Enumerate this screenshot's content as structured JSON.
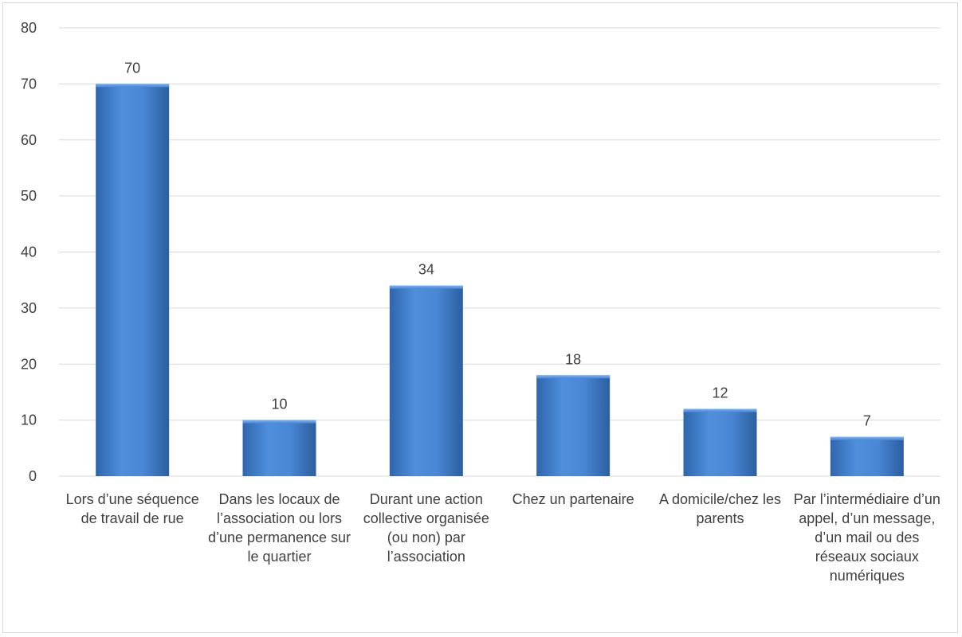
{
  "chart_data": {
    "type": "bar",
    "title": "",
    "xlabel": "",
    "ylabel": "",
    "categories": [
      "Lors d’une séquence de travail de rue",
      "Dans les locaux de l’association ou lors d’une permanence sur le quartier",
      "Durant une action collective organisée (ou non) par l’association",
      "Chez un partenaire",
      "A domicile/chez les parents",
      "Par l’intermédiaire d’un appel, d’un message, d’un mail ou des réseaux sociaux numériques"
    ],
    "values": [
      70,
      10,
      34,
      18,
      12,
      7
    ],
    "data_labels": [
      "70",
      "10",
      "34",
      "18",
      "12",
      "7"
    ],
    "ylim": [
      0,
      80
    ],
    "yticks": [
      "0",
      "10",
      "20",
      "30",
      "40",
      "50",
      "60",
      "70",
      "80"
    ],
    "grid": true,
    "legend": "none",
    "bar_color": "#4a86d4",
    "bar_color_dark": "#2b5f9f",
    "gridline_color": "#d9d9d9"
  }
}
